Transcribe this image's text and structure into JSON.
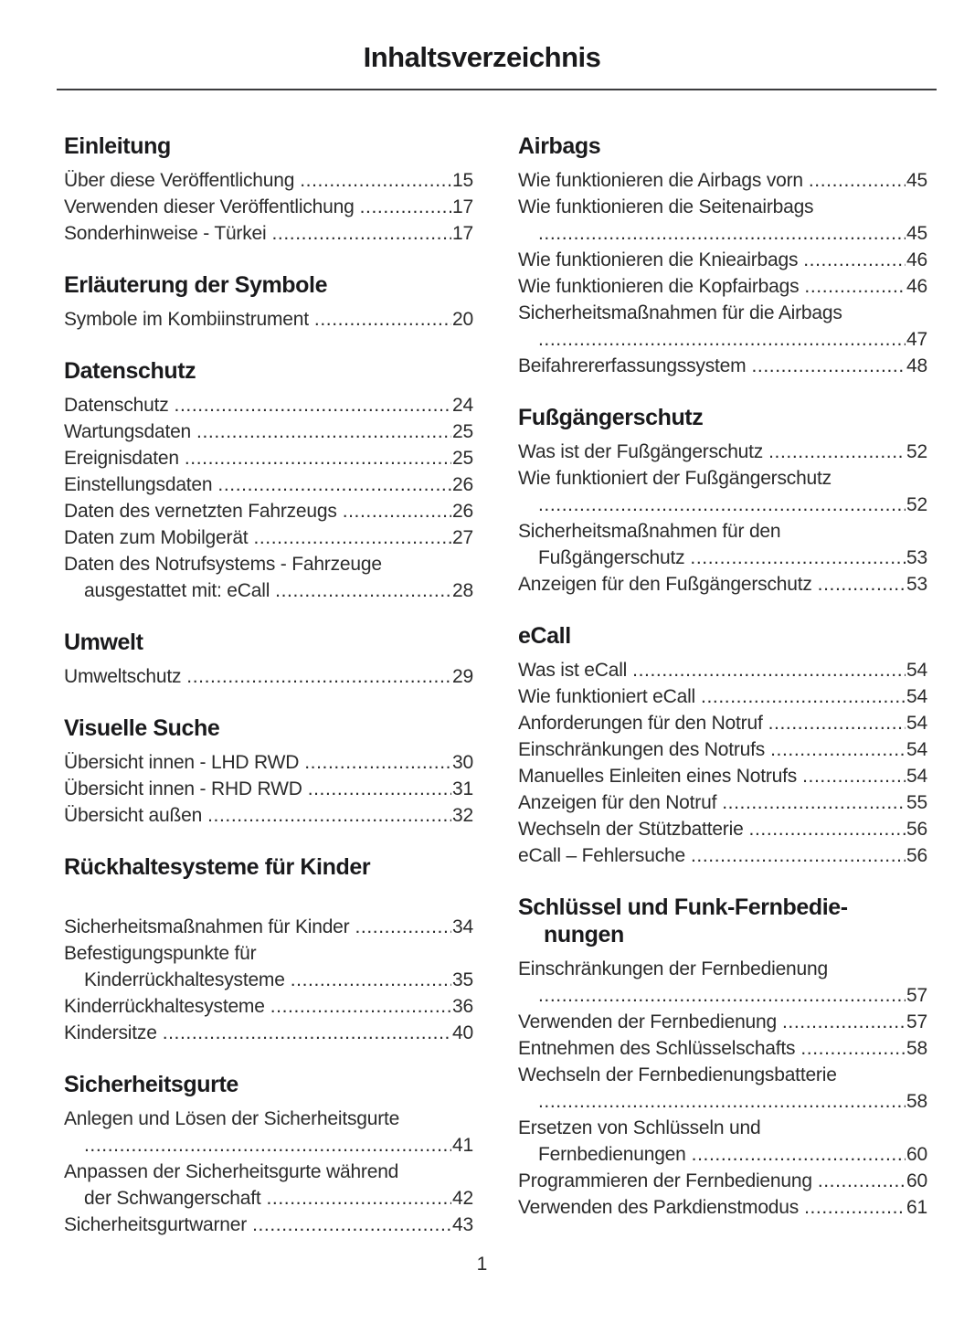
{
  "page": {
    "title": "Inhaltsverzeichnis",
    "page_number": "1",
    "ink_color": "#1a1a1c",
    "background_color": "#ffffff"
  },
  "columns": [
    {
      "side": "left",
      "sections": [
        {
          "heading_lines": [
            "Einleitung"
          ],
          "extra_gap_after_heading": false,
          "entries": [
            {
              "lines": [
                "Über diese Veröffentlichung"
              ],
              "page": "15"
            },
            {
              "lines": [
                "Verwenden dieser Veröffentlichung"
              ],
              "page": "17"
            },
            {
              "lines": [
                "Sonderhinweise - Türkei"
              ],
              "page": "17"
            }
          ]
        },
        {
          "heading_lines": [
            "Erläuterung der Symbole"
          ],
          "extra_gap_after_heading": false,
          "entries": [
            {
              "lines": [
                "Symbole im Kombiinstrument"
              ],
              "page": "20"
            }
          ]
        },
        {
          "heading_lines": [
            "Datenschutz"
          ],
          "extra_gap_after_heading": false,
          "entries": [
            {
              "lines": [
                "Datenschutz"
              ],
              "page": "24"
            },
            {
              "lines": [
                "Wartungsdaten"
              ],
              "page": "25"
            },
            {
              "lines": [
                "Ereignisdaten"
              ],
              "page": "25"
            },
            {
              "lines": [
                "Einstellungsdaten"
              ],
              "page": "26"
            },
            {
              "lines": [
                "Daten des vernetzten Fahrzeugs"
              ],
              "page": "26"
            },
            {
              "lines": [
                "Daten zum Mobilgerät"
              ],
              "page": "27"
            },
            {
              "lines": [
                "Daten des Notrufsystems - Fahrzeuge",
                "ausgestattet mit: eCall"
              ],
              "page": "28"
            }
          ]
        },
        {
          "heading_lines": [
            "Umwelt"
          ],
          "extra_gap_after_heading": false,
          "entries": [
            {
              "lines": [
                "Umweltschutz"
              ],
              "page": "29"
            }
          ]
        },
        {
          "heading_lines": [
            "Visuelle Suche"
          ],
          "extra_gap_after_heading": false,
          "entries": [
            {
              "lines": [
                "Übersicht innen - LHD RWD"
              ],
              "page": "30"
            },
            {
              "lines": [
                "Übersicht innen - RHD RWD"
              ],
              "page": "31"
            },
            {
              "lines": [
                "Übersicht außen"
              ],
              "page": "32"
            }
          ]
        },
        {
          "heading_lines": [
            "Rückhaltesysteme für Kinder"
          ],
          "extra_gap_after_heading": true,
          "entries": [
            {
              "lines": [
                "Sicherheitsmaßnahmen für Kinder"
              ],
              "page": "34"
            },
            {
              "lines": [
                "Befestigungspunkte für",
                "Kinderrückhaltesysteme"
              ],
              "page": "35"
            },
            {
              "lines": [
                "Kinderrückhaltesysteme"
              ],
              "page": "36"
            },
            {
              "lines": [
                "Kindersitze"
              ],
              "page": "40"
            }
          ]
        },
        {
          "heading_lines": [
            "Sicherheitsgurte"
          ],
          "extra_gap_after_heading": false,
          "entries": [
            {
              "lines": [
                "Anlegen und Lösen der Sicherheitsgurte",
                ""
              ],
              "page": "41"
            },
            {
              "lines": [
                "Anpassen der Sicherheitsgurte während",
                "der Schwangerschaft"
              ],
              "page": "42"
            },
            {
              "lines": [
                "Sicherheitsgurtwarner"
              ],
              "page": "43"
            }
          ]
        }
      ]
    },
    {
      "side": "right",
      "sections": [
        {
          "heading_lines": [
            "Airbags"
          ],
          "extra_gap_after_heading": false,
          "entries": [
            {
              "lines": [
                "Wie funktionieren die Airbags vorn"
              ],
              "page": "45"
            },
            {
              "lines": [
                "Wie funktionieren die Seitenairbags",
                ""
              ],
              "page": "45"
            },
            {
              "lines": [
                "Wie funktionieren die Knieairbags"
              ],
              "page": "46"
            },
            {
              "lines": [
                "Wie funktionieren die Kopfairbags"
              ],
              "page": "46"
            },
            {
              "lines": [
                "Sicherheitsmaßnahmen für die Airbags",
                ""
              ],
              "page": "47"
            },
            {
              "lines": [
                "Beifahrererfassungssystem"
              ],
              "page": "48"
            }
          ]
        },
        {
          "heading_lines": [
            "Fußgängerschutz"
          ],
          "extra_gap_after_heading": false,
          "entries": [
            {
              "lines": [
                "Was ist der Fußgängerschutz"
              ],
              "page": "52"
            },
            {
              "lines": [
                "Wie funktioniert der Fußgängerschutz",
                ""
              ],
              "page": "52"
            },
            {
              "lines": [
                "Sicherheitsmaßnahmen für den",
                "Fußgängerschutz"
              ],
              "page": "53"
            },
            {
              "lines": [
                "Anzeigen für den Fußgängerschutz"
              ],
              "page": "53"
            }
          ]
        },
        {
          "heading_lines": [
            "eCall"
          ],
          "extra_gap_after_heading": false,
          "entries": [
            {
              "lines": [
                "Was ist eCall"
              ],
              "page": "54"
            },
            {
              "lines": [
                "Wie funktioniert eCall"
              ],
              "page": "54"
            },
            {
              "lines": [
                "Anforderungen für den Notruf"
              ],
              "page": "54"
            },
            {
              "lines": [
                "Einschränkungen des Notrufs"
              ],
              "page": "54"
            },
            {
              "lines": [
                "Manuelles Einleiten eines Notrufs"
              ],
              "page": "54"
            },
            {
              "lines": [
                "Anzeigen für den Notruf"
              ],
              "page": "55"
            },
            {
              "lines": [
                "Wechseln der Stützbatterie"
              ],
              "page": "56"
            },
            {
              "lines": [
                "eCall – Fehlersuche"
              ],
              "page": "56"
            }
          ]
        },
        {
          "heading_lines": [
            "Schlüssel und Funk-Fernbedie-",
            "nungen"
          ],
          "extra_gap_after_heading": false,
          "entries": [
            {
              "lines": [
                "Einschränkungen der Fernbedienung",
                ""
              ],
              "page": "57"
            },
            {
              "lines": [
                "Verwenden der Fernbedienung"
              ],
              "page": "57"
            },
            {
              "lines": [
                "Entnehmen des Schlüsselschafts"
              ],
              "page": "58"
            },
            {
              "lines": [
                "Wechseln der Fernbedienungsbatterie",
                ""
              ],
              "page": "58"
            },
            {
              "lines": [
                "Ersetzen von Schlüsseln und",
                "Fernbedienungen"
              ],
              "page": "60"
            },
            {
              "lines": [
                "Programmieren der Fernbedienung"
              ],
              "page": "60"
            },
            {
              "lines": [
                "Verwenden des Parkdienstmodus"
              ],
              "page": "61"
            }
          ]
        }
      ]
    }
  ]
}
